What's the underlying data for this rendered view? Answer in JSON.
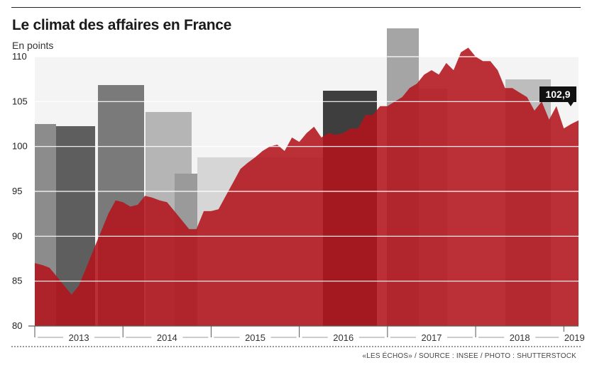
{
  "header": {
    "title": "Le climat des affaires en France",
    "subtitle": "En points"
  },
  "footer": {
    "source": "«LES ÉCHOS» / SOURCE : INSEE / PHOTO : SHUTTERSTOCK"
  },
  "colors": {
    "area_fill": "#b3141b",
    "grid": "#ffffff",
    "label_bg": "#111111"
  },
  "chart_data": {
    "type": "area",
    "title": "Le climat des affaires en France",
    "ylabel": "En points",
    "ylim": [
      80,
      110
    ],
    "yticks": [
      80,
      85,
      90,
      95,
      100,
      105,
      110
    ],
    "ytick_labels": [
      "80",
      "85",
      "90",
      "95",
      "100",
      "105",
      "110"
    ],
    "grid": true,
    "x_start": "2013-01",
    "year_labels": [
      "2013",
      "2014",
      "2015",
      "2016",
      "2017",
      "2018",
      "2019"
    ],
    "last_value_label": "102,9",
    "series": [
      {
        "values": [
          87.0,
          86.8,
          86.5,
          85.5,
          84.5,
          83.5,
          84.5,
          86.5,
          88.5,
          90.5,
          92.5,
          94.0,
          93.8,
          93.3,
          93.5,
          94.5,
          94.3,
          94.0,
          93.8,
          92.8,
          91.8,
          90.8,
          90.8,
          92.8,
          92.8,
          93.0,
          94.5,
          96.0,
          97.5,
          98.2,
          98.8,
          99.5,
          100.0,
          100.2,
          99.5,
          101.0,
          100.5,
          101.5,
          102.2,
          101.0,
          101.5,
          101.3,
          101.5,
          102.0,
          102.0,
          103.5,
          103.5,
          104.5,
          104.5,
          105.0,
          105.5,
          106.5,
          107.0,
          108.0,
          108.5,
          108.0,
          109.3,
          108.5,
          110.5,
          111.0,
          110.0,
          109.5,
          109.5,
          108.5,
          106.5,
          106.5,
          106.0,
          105.5,
          104.0,
          105.0,
          103.0,
          104.5,
          102.0,
          102.5,
          102.9
        ]
      }
    ]
  }
}
